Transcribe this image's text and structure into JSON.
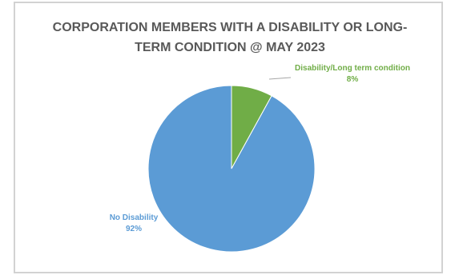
{
  "chart_data": {
    "type": "pie",
    "title": "CORPORATION MEMBERS WITH A DISABILITY OR LONG-TERM CONDITION @ MAY 2023",
    "title_lines": [
      "CORPORATION MEMBERS WITH A DISABILITY OR LONG-",
      "TERM CONDITION @ MAY 2023"
    ],
    "slices": [
      {
        "label": "Disability/Long term condition",
        "value": 8,
        "value_label": "8%",
        "color": "#70ad47"
      },
      {
        "label": "No Disability",
        "value": 92,
        "value_label": "92%",
        "color": "#5b9bd5"
      }
    ],
    "legend": "none"
  }
}
